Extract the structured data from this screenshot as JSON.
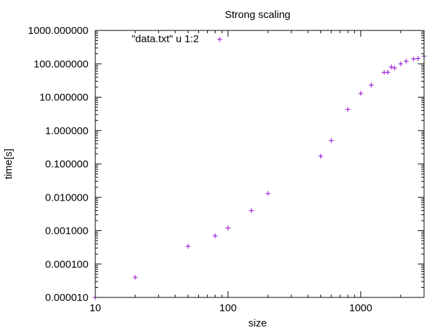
{
  "colors": {
    "series": "#9400d3",
    "axis": "#000000",
    "background": "#ffffff"
  },
  "chart_data": {
    "type": "scatter",
    "title": "Strong scaling",
    "xlabel": "size",
    "ylabel": "time[s]",
    "xscale": "log",
    "yscale": "log",
    "xlim": [
      10,
      3000
    ],
    "ylim": [
      1e-05,
      1000
    ],
    "grid": false,
    "legend_position": "top-left (inside)",
    "marker": "plus",
    "xticks": [
      {
        "value": 10,
        "label": "10"
      },
      {
        "value": 100,
        "label": "100"
      },
      {
        "value": 1000,
        "label": "1000"
      }
    ],
    "yticks": [
      {
        "value": 1e-05,
        "label": "0.000010"
      },
      {
        "value": 0.0001,
        "label": "0.000100"
      },
      {
        "value": 0.001,
        "label": "0.001000"
      },
      {
        "value": 0.01,
        "label": "0.010000"
      },
      {
        "value": 0.1,
        "label": "0.100000"
      },
      {
        "value": 1,
        "label": "1.000000"
      },
      {
        "value": 10,
        "label": "10.000000"
      },
      {
        "value": 100,
        "label": "100.000000"
      },
      {
        "value": 1000,
        "label": "1000.000000"
      }
    ],
    "series": [
      {
        "name": "\"data.txt\" u 1:2",
        "points": [
          {
            "x": 10,
            "y": 1e-05
          },
          {
            "x": 20,
            "y": 4e-05
          },
          {
            "x": 50,
            "y": 0.00034
          },
          {
            "x": 80,
            "y": 0.0007
          },
          {
            "x": 100,
            "y": 0.0012
          },
          {
            "x": 150,
            "y": 0.004
          },
          {
            "x": 200,
            "y": 0.013
          },
          {
            "x": 500,
            "y": 0.17
          },
          {
            "x": 600,
            "y": 0.5
          },
          {
            "x": 800,
            "y": 4.3
          },
          {
            "x": 1000,
            "y": 13
          },
          {
            "x": 1200,
            "y": 23
          },
          {
            "x": 1500,
            "y": 55
          },
          {
            "x": 1600,
            "y": 56
          },
          {
            "x": 1700,
            "y": 80
          },
          {
            "x": 1800,
            "y": 75
          },
          {
            "x": 2000,
            "y": 100
          },
          {
            "x": 2200,
            "y": 120
          },
          {
            "x": 2500,
            "y": 140
          },
          {
            "x": 2700,
            "y": 145
          },
          {
            "x": 3000,
            "y": 170
          }
        ]
      }
    ]
  }
}
